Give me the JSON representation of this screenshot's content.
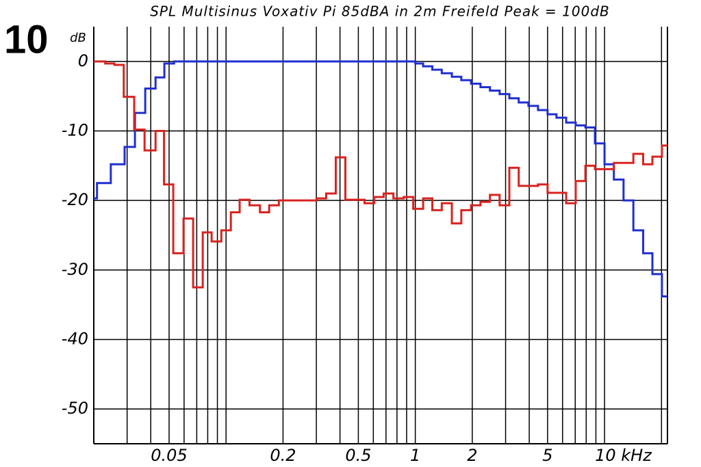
{
  "chart_data": {
    "type": "step",
    "title": "SPL Multisinus Voxativ Pi 85dBA in 2m Freifeld Peak = 100dB",
    "annotation": "10",
    "y_label": "dB",
    "log_x": true,
    "grid": true,
    "xlim": [
      0.02,
      21.5
    ],
    "ylim": [
      -55,
      5
    ],
    "xticks": [
      0.05,
      0.2,
      0.5,
      1,
      2,
      5,
      {
        "value": 10,
        "label": "10 kHz"
      }
    ],
    "xgrid": [
      0.03,
      0.04,
      0.05,
      0.06,
      0.07,
      0.08,
      0.09,
      0.1,
      0.2,
      0.3,
      0.4,
      0.5,
      0.6,
      0.7,
      0.8,
      0.9,
      1,
      2,
      3,
      4,
      5,
      6,
      7,
      8,
      9,
      10,
      20
    ],
    "yticks": [
      0,
      -10,
      -20,
      -30,
      -40,
      -50
    ],
    "series": [
      {
        "color": "#1f2fd0",
        "x": [
          0.02,
          0.0208,
          0.0246,
          0.0291,
          0.033,
          0.0374,
          0.0424,
          0.0472,
          0.0531,
          1.0,
          1.1,
          1.23,
          1.38,
          1.56,
          1.75,
          1.97,
          2.21,
          2.48,
          2.79,
          3.14,
          3.52,
          3.96,
          4.45,
          5.0,
          5.57,
          6.27,
          7.04,
          7.92,
          8.9,
          10.0,
          11.2,
          12.6,
          14.2,
          16.0,
          17.9,
          20.1
        ],
        "values": [
          -19.7,
          -17.5,
          -14.8,
          -12.3,
          -7.4,
          -3.9,
          -2.3,
          -0.3,
          0,
          -0.3,
          -0.7,
          -1.2,
          -1.7,
          -2.2,
          -2.7,
          -3.2,
          -3.7,
          -4.2,
          -4.7,
          -5.3,
          -5.9,
          -6.4,
          -7.0,
          -7.6,
          -8.1,
          -8.8,
          -9.2,
          -9.5,
          -11.8,
          -14.8,
          -17,
          -20,
          -24.3,
          -27.6,
          -30.6,
          -33.8
        ]
      },
      {
        "color": "#d8231f",
        "x": [
          0.02,
          0.023,
          0.0257,
          0.0288,
          0.0327,
          0.0371,
          0.0424,
          0.047,
          0.0526,
          0.0596,
          0.067,
          0.0753,
          0.0839,
          0.0944,
          0.106,
          0.118,
          0.133,
          0.151,
          0.169,
          0.19,
          0.301,
          0.338,
          0.38,
          0.427,
          0.539,
          0.607,
          0.681,
          0.766,
          0.868,
          0.975,
          1.1,
          1.23,
          1.38,
          1.56,
          1.75,
          1.97,
          2.21,
          2.48,
          2.79,
          3.14,
          3.52,
          4.45,
          5.0,
          6.27,
          7.04,
          7.92,
          8.9,
          11.2,
          14.2,
          16.0,
          17.9,
          20.1
        ],
        "values": [
          0,
          -0.3,
          -0.5,
          -5.1,
          -9.8,
          -12.8,
          -10,
          -17.7,
          -27.6,
          -22.6,
          -32.5,
          -24.6,
          -25.9,
          -24.3,
          -21.7,
          -19.9,
          -20.7,
          -21.7,
          -20.7,
          -20,
          -19.7,
          -19,
          -13.8,
          -19.9,
          -20.4,
          -19.5,
          -19,
          -19.7,
          -19.5,
          -21.2,
          -19.7,
          -21.4,
          -20.4,
          -23.3,
          -21.4,
          -20.7,
          -20.2,
          -19.2,
          -20.7,
          -15.3,
          -17.9,
          -17.7,
          -18.9,
          -20.4,
          -17.2,
          -15,
          -15.5,
          -14.6,
          -13.3,
          -14.8,
          -13.7,
          -12.1
        ]
      }
    ]
  }
}
